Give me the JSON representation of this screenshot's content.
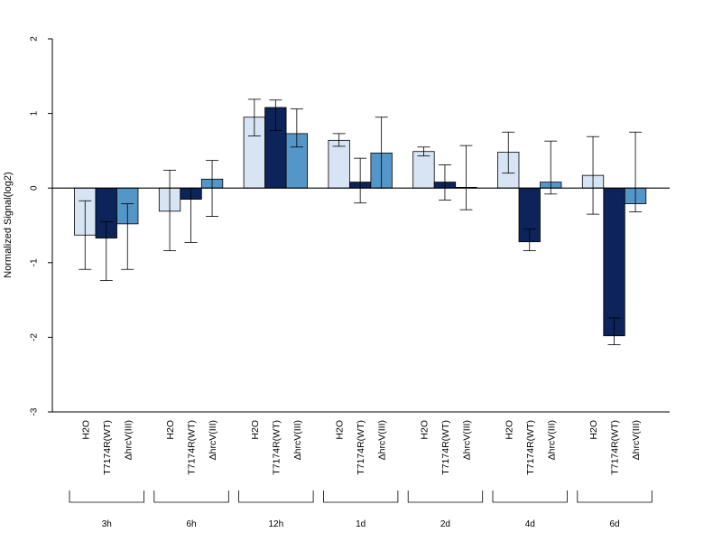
{
  "chart_data": {
    "type": "bar",
    "title": "",
    "xlabel": "",
    "ylabel": "Normalized Signal(log2)",
    "ylim": [
      -3,
      2
    ],
    "yticks": [
      -3,
      -2,
      -1,
      0,
      1,
      2
    ],
    "grid": false,
    "legend": "none",
    "groups": [
      "3h",
      "6h",
      "12h",
      "1d",
      "2d",
      "4d",
      "6d"
    ],
    "series": [
      {
        "name": "H2O",
        "color": "#d6e4f3",
        "values": [
          -0.63,
          -0.31,
          0.95,
          0.64,
          0.49,
          0.48,
          0.17
        ],
        "err_low": [
          -1.09,
          -0.84,
          0.7,
          0.56,
          0.43,
          0.2,
          -0.35
        ],
        "err_high": [
          -0.17,
          0.24,
          1.19,
          0.73,
          0.55,
          0.75,
          0.69
        ]
      },
      {
        "name": "T7174R(WT)",
        "color": "#0c2459",
        "values": [
          -0.67,
          -0.15,
          1.08,
          0.08,
          0.08,
          -0.72,
          -1.98
        ],
        "err_low": [
          -1.24,
          -0.73,
          0.77,
          -0.2,
          -0.16,
          -0.84,
          -2.1
        ],
        "err_high": [
          -0.45,
          0.0,
          1.18,
          0.4,
          0.31,
          -0.55,
          -1.74
        ]
      },
      {
        "name": "ΔhrcV(III)",
        "color": "#5596c8",
        "values": [
          -0.48,
          0.12,
          0.73,
          0.47,
          0.01,
          0.08,
          -0.21
        ],
        "err_low": [
          -1.09,
          -0.38,
          0.55,
          0.0,
          -0.29,
          -0.08,
          -0.32
        ],
        "err_high": [
          -0.21,
          0.37,
          1.06,
          0.95,
          0.57,
          0.63,
          0.75
        ]
      }
    ]
  }
}
